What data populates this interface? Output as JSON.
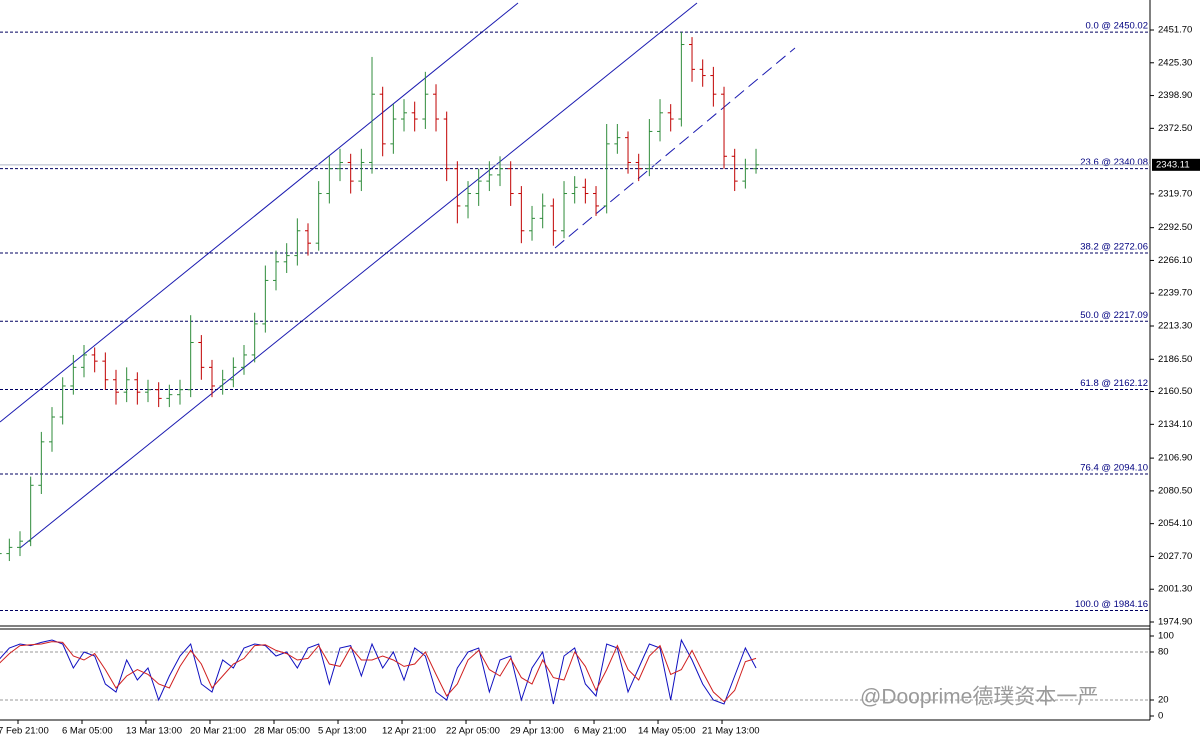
{
  "chart_data": [
    {
      "type": "ohlc",
      "categories": [
        null,
        null,
        "7 Feb 21:00",
        null,
        null,
        null,
        null,
        null,
        "6 Mar 05:00",
        null,
        null,
        null,
        null,
        null,
        "13 Mar 13:00",
        null,
        null,
        null,
        null,
        null,
        "20 Mar 21:00",
        null,
        null,
        null,
        null,
        null,
        "28 Mar 05:00",
        null,
        null,
        null,
        null,
        null,
        "5 Apr 13:00",
        null,
        null,
        null,
        null,
        null,
        "12 Apr 21:00",
        null,
        null,
        null,
        null,
        null,
        "22 Apr 05:00",
        null,
        null,
        null,
        null,
        null,
        "29 Apr 13:00",
        null,
        null,
        null,
        null,
        null,
        "6 May 21:00",
        null,
        null,
        null,
        null,
        null,
        "14 May 05:00",
        null,
        null,
        null,
        null,
        null,
        "21 May 13:00",
        null,
        null,
        null
      ],
      "open": [
        2028,
        2030,
        2035,
        2040,
        2085,
        2120,
        2140,
        2165,
        2180,
        2190,
        2185,
        2170,
        2160,
        2170,
        2160,
        2162,
        2155,
        2158,
        2162,
        2200,
        2180,
        2165,
        2170,
        2180,
        2190,
        2215,
        2250,
        2265,
        2270,
        2290,
        2280,
        2320,
        2340,
        2345,
        2330,
        2345,
        2400,
        2360,
        2380,
        2385,
        2380,
        2400,
        2380,
        2340,
        2310,
        2320,
        2330,
        2335,
        2340,
        2320,
        2290,
        2300,
        2310,
        2290,
        2320,
        2325,
        2320,
        2310,
        2360,
        2365,
        2345,
        2340,
        2370,
        2385,
        2380,
        2440,
        2420,
        2415,
        2400,
        2350,
        2330,
        2340
      ],
      "high": [
        2036,
        2042,
        2048,
        2092,
        2128,
        2148,
        2172,
        2190,
        2198,
        2196,
        2192,
        2178,
        2180,
        2176,
        2170,
        2168,
        2166,
        2170,
        2222,
        2206,
        2186,
        2178,
        2188,
        2198,
        2224,
        2262,
        2274,
        2280,
        2300,
        2296,
        2330,
        2350,
        2356,
        2352,
        2356,
        2430,
        2406,
        2392,
        2396,
        2394,
        2418,
        2408,
        2386,
        2346,
        2330,
        2340,
        2346,
        2350,
        2346,
        2326,
        2310,
        2320,
        2316,
        2330,
        2334,
        2332,
        2326,
        2376,
        2376,
        2370,
        2352,
        2380,
        2396,
        2392,
        2450,
        2446,
        2428,
        2422,
        2406,
        2356,
        2348,
        2356
      ],
      "low": [
        2022,
        2024,
        2028,
        2036,
        2078,
        2112,
        2134,
        2158,
        2172,
        2176,
        2162,
        2150,
        2152,
        2150,
        2152,
        2148,
        2148,
        2150,
        2156,
        2170,
        2156,
        2158,
        2164,
        2174,
        2184,
        2208,
        2242,
        2256,
        2262,
        2270,
        2274,
        2312,
        2330,
        2320,
        2322,
        2336,
        2350,
        2352,
        2370,
        2370,
        2372,
        2370,
        2330,
        2296,
        2300,
        2310,
        2322,
        2326,
        2310,
        2280,
        2282,
        2292,
        2278,
        2284,
        2312,
        2312,
        2302,
        2304,
        2352,
        2336,
        2330,
        2334,
        2362,
        2370,
        2374,
        2410,
        2406,
        2390,
        2340,
        2322,
        2324,
        2336
      ],
      "close": [
        2030,
        2035,
        2040,
        2085,
        2120,
        2140,
        2165,
        2180,
        2190,
        2185,
        2170,
        2160,
        2170,
        2160,
        2162,
        2155,
        2158,
        2162,
        2200,
        2180,
        2165,
        2170,
        2180,
        2190,
        2215,
        2250,
        2265,
        2270,
        2290,
        2280,
        2320,
        2340,
        2345,
        2330,
        2345,
        2400,
        2360,
        2380,
        2385,
        2380,
        2400,
        2380,
        2340,
        2310,
        2320,
        2330,
        2335,
        2340,
        2320,
        2290,
        2300,
        2310,
        2290,
        2320,
        2325,
        2320,
        2310,
        2360,
        2365,
        2345,
        2340,
        2370,
        2385,
        2380,
        2440,
        2420,
        2415,
        2400,
        2350,
        2330,
        2340,
        2343.11
      ],
      "up_color": "#2e8b3a",
      "down_color": "#c00000",
      "ylim": [
        1974.9,
        2451.7
      ],
      "yticks": [
        {
          "value": 2451.7,
          "label": "2451.70"
        },
        {
          "value": 2425.3,
          "label": "2425.30"
        },
        {
          "value": 2398.9,
          "label": "2398.90"
        },
        {
          "value": 2372.5,
          "label": "2372.50"
        },
        {
          "value": 2319.7,
          "label": "2319.70"
        },
        {
          "value": 2292.5,
          "label": "2292.50"
        },
        {
          "value": 2266.1,
          "label": "2266.10"
        },
        {
          "value": 2239.7,
          "label": "2239.70"
        },
        {
          "value": 2213.3,
          "label": "2213.30"
        },
        {
          "value": 2186.5,
          "label": "2186.50"
        },
        {
          "value": 2160.5,
          "label": "2160.50"
        },
        {
          "value": 2134.1,
          "label": "2134.10"
        },
        {
          "value": 2106.9,
          "label": "2106.90"
        },
        {
          "value": 2080.5,
          "label": "2080.50"
        },
        {
          "value": 2054.1,
          "label": "2054.10"
        },
        {
          "value": 2027.7,
          "label": "2027.70"
        },
        {
          "value": 2001.3,
          "label": "2001.30"
        },
        {
          "value": 1974.9,
          "label": "1974.90"
        }
      ],
      "fib_levels": [
        {
          "value": 2450.02,
          "label": "0.0 @ 2450.02"
        },
        {
          "value": 2340.08,
          "label": "23.6 @ 2340.08"
        },
        {
          "value": 2272.06,
          "label": "38.2 @ 2272.06"
        },
        {
          "value": 2217.09,
          "label": "50.0 @ 2217.09"
        },
        {
          "value": 2162.12,
          "label": "61.8 @ 2162.12"
        },
        {
          "value": 2094.1,
          "label": "76.4 @ 2094.10"
        },
        {
          "value": 1984.16,
          "label": "100.0 @ 1984.16"
        }
      ],
      "last_price": 2343.11
    },
    {
      "type": "line",
      "series": [
        {
          "name": "%K",
          "color": "#1010c0",
          "values": [
            70,
            85,
            90,
            88,
            92,
            95,
            90,
            60,
            80,
            75,
            40,
            30,
            70,
            45,
            60,
            20,
            50,
            75,
            90,
            40,
            30,
            70,
            60,
            85,
            90,
            88,
            75,
            80,
            60,
            85,
            90,
            40,
            85,
            88,
            50,
            90,
            60,
            80,
            45,
            85,
            75,
            30,
            20,
            60,
            80,
            85,
            30,
            70,
            75,
            20,
            60,
            80,
            15,
            75,
            85,
            40,
            25,
            90,
            85,
            30,
            60,
            90,
            85,
            20,
            95,
            70,
            40,
            20,
            15,
            50,
            85,
            60
          ]
        },
        {
          "name": "%D",
          "color": "#d02020",
          "values": [
            65,
            78,
            88,
            89,
            90,
            93,
            92,
            75,
            70,
            78,
            58,
            35,
            50,
            58,
            52,
            40,
            35,
            62,
            82,
            65,
            35,
            50,
            65,
            72,
            88,
            89,
            82,
            78,
            70,
            72,
            88,
            65,
            62,
            86,
            70,
            70,
            75,
            70,
            62,
            65,
            80,
            52,
            25,
            40,
            70,
            82,
            58,
            50,
            72,
            48,
            40,
            70,
            48,
            45,
            80,
            62,
            32,
            58,
            88,
            58,
            45,
            75,
            88,
            52,
            58,
            82,
            55,
            30,
            18,
            32,
            68,
            72
          ]
        }
      ],
      "ylim": [
        0,
        100
      ],
      "yticks": [
        100,
        80,
        20,
        0
      ],
      "levels": [
        80,
        20
      ]
    }
  ],
  "watermark": "@Dooprime德璞资本一严"
}
